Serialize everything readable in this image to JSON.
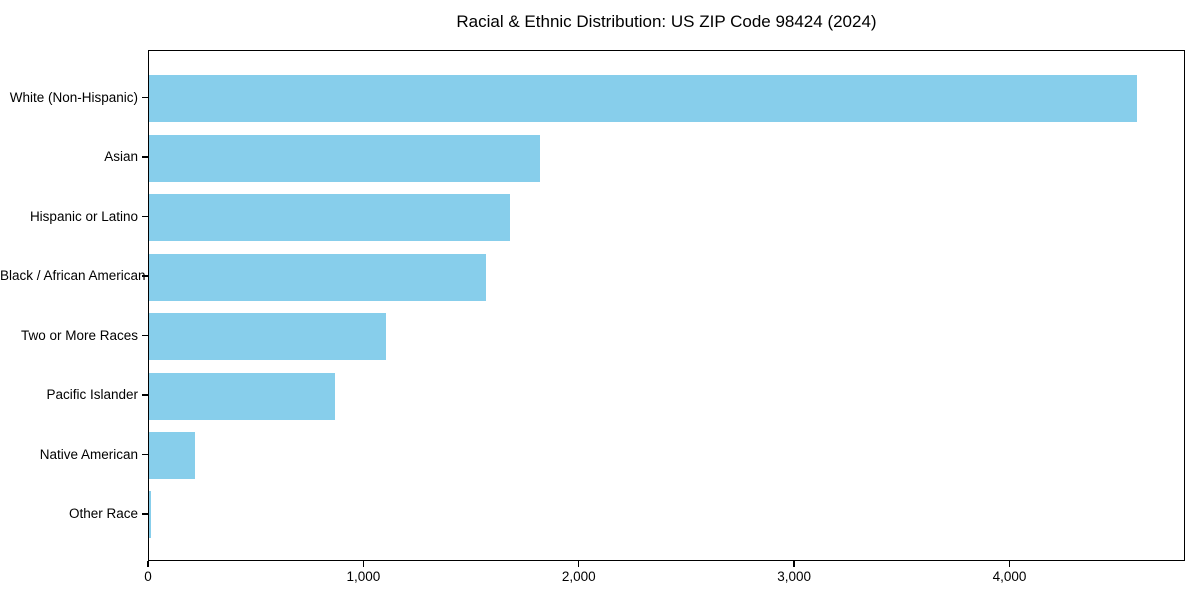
{
  "chart_data": {
    "type": "bar",
    "orientation": "horizontal",
    "title": "Racial & Ethnic Distribution: US ZIP Code 98424 (2024)",
    "categories": [
      "White (Non-Hispanic)",
      "Asian",
      "Hispanic or Latino",
      "Black / African American",
      "Two or More Races",
      "Pacific Islander",
      "Native American",
      "Other Race"
    ],
    "values": [
      4588,
      1815,
      1675,
      1565,
      1100,
      865,
      215,
      8
    ],
    "xlabel": "",
    "ylabel": "",
    "xlim": [
      0,
      4815
    ],
    "x_ticks": [
      0,
      1000,
      2000,
      3000,
      4000
    ],
    "x_tick_labels": [
      "0",
      "1,000",
      "2,000",
      "3,000",
      "4,000"
    ],
    "bar_color": "#87CEEB",
    "axis_color": "#000000",
    "text_color": "#000000",
    "background": "#FFFFFF",
    "grid": false,
    "legend": null
  }
}
